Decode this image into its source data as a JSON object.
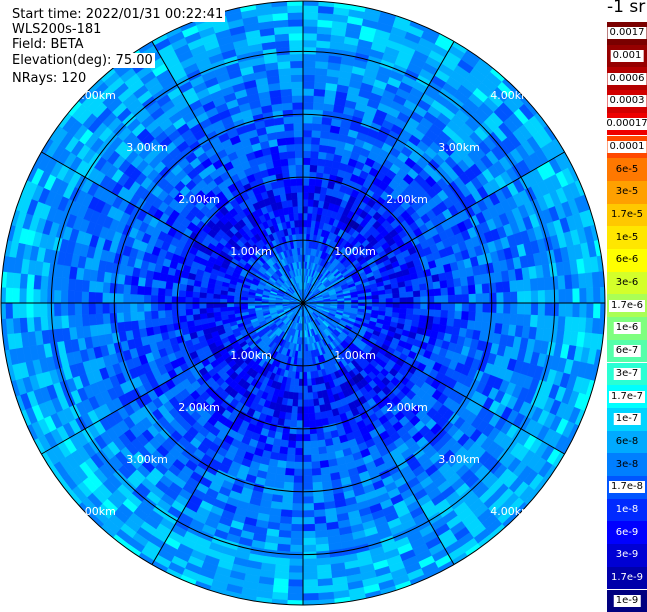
{
  "header": {
    "start_time": "Start time: 2022/01/31 00:22:41",
    "instrument": "WLS200s-181",
    "field": "Field: BETA",
    "elevation": "Elevation(deg): 75.00",
    "nrays": "NRays: 120"
  },
  "units_label": "-1 sr",
  "chart_data": {
    "type": "heatmap",
    "projection": "polar-ppi",
    "field": "BETA",
    "elevation_deg": 75.0,
    "n_rays": 120,
    "range_max_km": 4.8,
    "range_ring_km": [
      1.0,
      2.0,
      3.0,
      4.0,
      4.8
    ],
    "range_labels": [
      "1.00km",
      "2.00km",
      "3.00km",
      "4.00km"
    ],
    "azimuth_spokes_deg": [
      0,
      30,
      60,
      90,
      120,
      150,
      180,
      210,
      240,
      270,
      300,
      330
    ],
    "typical_values": [
      {
        "range_km": 0.5,
        "value": 3e-08
      },
      {
        "range_km": 1.5,
        "value": 6e-09
      },
      {
        "range_km": 2.5,
        "value": 1.7e-08
      },
      {
        "range_km": 3.5,
        "value": 3e-08
      },
      {
        "range_km": 4.5,
        "value": 6e-08
      }
    ],
    "colorbar": [
      {
        "label": "0.0017",
        "color": "#7a0000",
        "text": "#000000",
        "label_bg": "#ffffff"
      },
      {
        "label": "0.001",
        "color": "#960000",
        "text": "#000000",
        "label_bg": "#ffffff"
      },
      {
        "label": "0.0006",
        "color": "#b40000",
        "text": "#000000",
        "label_bg": "#ffffff"
      },
      {
        "label": "0.0003",
        "color": "#d20000",
        "text": "#000000",
        "label_bg": "#ffffff"
      },
      {
        "label": "0.00017",
        "color": "#ee0000",
        "text": "#000000",
        "label_bg": "#ffffff"
      },
      {
        "label": "0.0001",
        "color": "#ff4800",
        "text": "#000000",
        "label_bg": "#ffffff"
      },
      {
        "label": "6e-5",
        "color": "#ff7800",
        "text": "#000000",
        "label_bg": "#ff7800"
      },
      {
        "label": "3e-5",
        "color": "#ffa000",
        "text": "#000000",
        "label_bg": "#ffa000"
      },
      {
        "label": "1.7e-5",
        "color": "#ffc800",
        "text": "#000000",
        "label_bg": "#ffc800"
      },
      {
        "label": "1e-5",
        "color": "#ffe600",
        "text": "#000000",
        "label_bg": "#ffe600"
      },
      {
        "label": "6e-6",
        "color": "#ffff00",
        "text": "#000000",
        "label_bg": "#ffff00"
      },
      {
        "label": "3e-6",
        "color": "#d4ff2a",
        "text": "#000000",
        "label_bg": "#d4ff2a"
      },
      {
        "label": "1.7e-6",
        "color": "#aaff55",
        "text": "#000000",
        "label_bg": "#ffffff"
      },
      {
        "label": "1e-6",
        "color": "#7fff7f",
        "text": "#000000",
        "label_bg": "#ffffff"
      },
      {
        "label": "6e-7",
        "color": "#55ffaa",
        "text": "#000000",
        "label_bg": "#ffffff"
      },
      {
        "label": "3e-7",
        "color": "#2affd4",
        "text": "#000000",
        "label_bg": "#ffffff"
      },
      {
        "label": "1.7e-7",
        "color": "#00ffff",
        "text": "#000000",
        "label_bg": "#ffffff"
      },
      {
        "label": "1e-7",
        "color": "#00d4ff",
        "text": "#000000",
        "label_bg": "#ffffff"
      },
      {
        "label": "6e-8",
        "color": "#00aaff",
        "text": "#000000",
        "label_bg": "#00aaff"
      },
      {
        "label": "3e-8",
        "color": "#007fff",
        "text": "#000000",
        "label_bg": "#007fff"
      },
      {
        "label": "1.7e-8",
        "color": "#0055ff",
        "text": "#000000",
        "label_bg": "#ffffff"
      },
      {
        "label": "1e-8",
        "color": "#002aff",
        "text": "#ffffff",
        "label_bg": "#002aff"
      },
      {
        "label": "6e-9",
        "color": "#0000ff",
        "text": "#ffffff",
        "label_bg": "#0000ff"
      },
      {
        "label": "3e-9",
        "color": "#0000d4",
        "text": "#ffffff",
        "label_bg": "#0000d4"
      },
      {
        "label": "1.7e-9",
        "color": "#0000aa",
        "text": "#ffffff",
        "label_bg": "#0000aa"
      },
      {
        "label": "1e-9",
        "color": "#00007f",
        "text": "#000000",
        "label_bg": "#ffffff"
      }
    ]
  }
}
